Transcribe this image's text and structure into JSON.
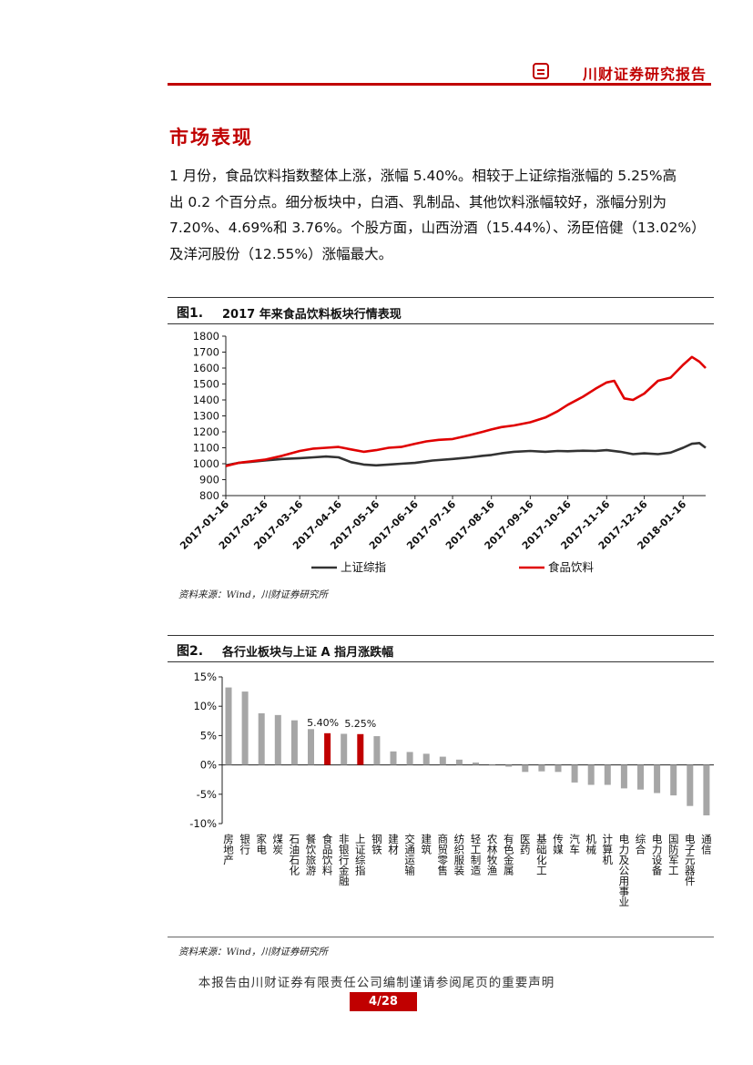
{
  "header": {
    "title": "川财证券研究报告"
  },
  "section": {
    "title": "市场表现",
    "paragraph_lines": [
      "1 月份，食品饮料指数整体上涨，涨幅 5.40%。相较于上证综指涨幅的 5.25%高",
      "出 0.2 个百分点。细分板块中，白酒、乳制品、其他饮料涨幅较好，涨幅分别为",
      "7.20%、4.69%和 3.76%。个股方面，山西汾酒（15.44%）、汤臣倍健（13.02%）",
      "及洋河股份（12.55%）涨幅最大。"
    ]
  },
  "figure1": {
    "num": "图1.",
    "caption": "2017 年来食品饮料板块行情表现",
    "source": "资料来源：Wind，川财证券研究所"
  },
  "figure2": {
    "num": "图2.",
    "caption": "各行业板块与上证 A 指月涨跌幅",
    "source": "资料来源：Wind，川财证券研究所"
  },
  "footer": {
    "text": "本报告由川财证券有限责任公司编制谨请参阅尾页的重要声明",
    "page": "4/28"
  },
  "colors": {
    "accent": "#c00000",
    "line_sh": "#333333",
    "bar_gray": "#a6a6a6",
    "bar_red": "#c00000"
  },
  "chart_data": [
    {
      "type": "line",
      "ylim": [
        800,
        1800
      ],
      "yticks": [
        "800",
        "900",
        "1000",
        "1100",
        "1200",
        "1300",
        "1400",
        "1500",
        "1600",
        "1700",
        "1800"
      ],
      "x_tick_labels": [
        "2017-01-16",
        "2017-02-16",
        "2017-03-16",
        "2017-04-16",
        "2017-05-16",
        "2017-06-16",
        "2017-07-16",
        "2017-08-16",
        "2017-09-16",
        "2017-10-16",
        "2017-11-16",
        "2017-12-16",
        "2018-01-16"
      ],
      "x_tick_days": [
        0,
        31,
        59,
        90,
        120,
        151,
        181,
        212,
        243,
        273,
        304,
        334,
        365
      ],
      "x_range_days": [
        0,
        383
      ],
      "series": [
        {
          "name": "上证综指",
          "color": "#333333",
          "days": [
            0,
            10,
            20,
            31,
            45,
            59,
            70,
            80,
            90,
            100,
            110,
            120,
            130,
            140,
            151,
            165,
            181,
            195,
            205,
            212,
            220,
            230,
            243,
            255,
            265,
            273,
            285,
            295,
            304,
            315,
            325,
            334,
            345,
            355,
            365,
            372,
            378,
            383
          ],
          "values": [
            990,
            1005,
            1012,
            1020,
            1030,
            1035,
            1040,
            1045,
            1040,
            1010,
            995,
            990,
            995,
            1000,
            1005,
            1020,
            1030,
            1040,
            1050,
            1055,
            1065,
            1075,
            1080,
            1075,
            1080,
            1078,
            1082,
            1080,
            1085,
            1075,
            1060,
            1065,
            1060,
            1070,
            1100,
            1125,
            1130,
            1100
          ]
        },
        {
          "name": "食品饮料",
          "color": "#e00000",
          "days": [
            0,
            10,
            20,
            31,
            45,
            59,
            70,
            80,
            90,
            100,
            110,
            120,
            130,
            140,
            151,
            160,
            170,
            181,
            195,
            205,
            212,
            220,
            230,
            243,
            255,
            265,
            273,
            285,
            295,
            304,
            310,
            318,
            325,
            334,
            345,
            355,
            365,
            372,
            378,
            383
          ],
          "values": [
            985,
            1005,
            1015,
            1025,
            1050,
            1080,
            1095,
            1100,
            1105,
            1090,
            1075,
            1085,
            1100,
            1105,
            1125,
            1140,
            1150,
            1155,
            1180,
            1200,
            1215,
            1230,
            1240,
            1260,
            1290,
            1330,
            1370,
            1420,
            1470,
            1510,
            1520,
            1410,
            1400,
            1440,
            1520,
            1540,
            1620,
            1670,
            1640,
            1600
          ]
        }
      ]
    },
    {
      "type": "bar",
      "ylim": [
        -10,
        15
      ],
      "yticks": [
        "-10%",
        "-5%",
        "0%",
        "5%",
        "10%",
        "15%"
      ],
      "categories": [
        "房地产",
        "银行",
        "家电",
        "煤炭",
        "石油石化",
        "餐饮旅游",
        "食品饮料",
        "非银行金融",
        "上证综指",
        "钢铁",
        "建材",
        "交通运输",
        "建筑",
        "商贸零售",
        "纺织服装",
        "轻工制造",
        "农林牧渔",
        "有色金属",
        "医药",
        "基础化工",
        "传媒",
        "汽车",
        "机械",
        "计算机",
        "电力及公用事业",
        "综合",
        "电力设备",
        "国防军工",
        "电子元器件",
        "通信"
      ],
      "values": [
        13.2,
        12.5,
        8.8,
        8.5,
        7.6,
        6.1,
        5.4,
        5.3,
        5.25,
        4.9,
        2.3,
        2.2,
        1.9,
        1.4,
        0.9,
        0.4,
        -0.1,
        -0.3,
        -1.2,
        -1.1,
        -1.2,
        -3.0,
        -3.4,
        -3.4,
        -4.0,
        -4.2,
        -4.8,
        -5.2,
        -7.0,
        -8.6
      ],
      "highlight": [
        "食品饮料",
        "上证综指"
      ],
      "data_labels": {
        "食品饮料": "5.40%",
        "上证综指": "5.25%"
      }
    }
  ]
}
